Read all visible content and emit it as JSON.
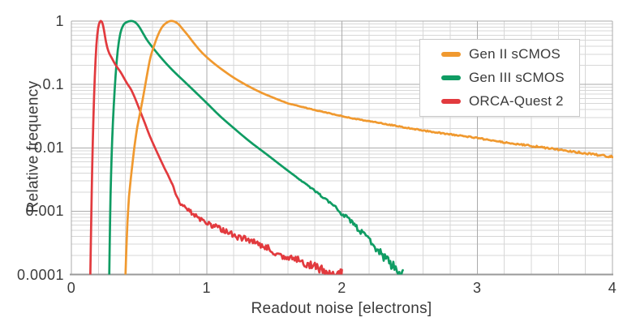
{
  "chart_data": {
    "type": "line",
    "title": "",
    "xlabel": "Readout noise [electrons]",
    "ylabel": "Relative frequency",
    "x_axis": {
      "min": 0,
      "max": 4,
      "major_step": 1,
      "minor_step": 0.2,
      "tick_labels": [
        "0",
        "1",
        "2",
        "3",
        "4"
      ]
    },
    "y_axis": {
      "scale": "log",
      "min": 0.0001,
      "max": 1,
      "tick_labels": [
        "1",
        "0.1",
        "0.01",
        "0.001",
        "0.0001"
      ]
    },
    "grid": {
      "major": true,
      "minor": true,
      "legend_position": "upper right"
    },
    "series": [
      {
        "name": "Gen II sCMOS",
        "color": "#F0992F",
        "noise": {
          "start_below": 0.08,
          "amp_per_decade": 0.015
        },
        "points": [
          [
            0.4,
            0.0001
          ],
          [
            0.41,
            0.0004
          ],
          [
            0.42,
            0.0011
          ],
          [
            0.432,
            0.0022
          ],
          [
            0.445,
            0.0042
          ],
          [
            0.458,
            0.0075
          ],
          [
            0.472,
            0.013
          ],
          [
            0.487,
            0.021
          ],
          [
            0.505,
            0.033
          ],
          [
            0.525,
            0.055
          ],
          [
            0.545,
            0.095
          ],
          [
            0.565,
            0.165
          ],
          [
            0.585,
            0.27
          ],
          [
            0.61,
            0.4
          ],
          [
            0.64,
            0.6
          ],
          [
            0.67,
            0.8
          ],
          [
            0.7,
            0.93
          ],
          [
            0.73,
            1.0
          ],
          [
            0.76,
            0.985
          ],
          [
            0.79,
            0.9
          ],
          [
            0.82,
            0.76
          ],
          [
            0.86,
            0.6
          ],
          [
            0.9,
            0.465
          ],
          [
            0.95,
            0.345
          ],
          [
            1.0,
            0.27
          ],
          [
            1.06,
            0.21
          ],
          [
            1.12,
            0.168
          ],
          [
            1.2,
            0.128
          ],
          [
            1.3,
            0.096
          ],
          [
            1.4,
            0.075
          ],
          [
            1.5,
            0.061
          ],
          [
            1.6,
            0.0505
          ],
          [
            1.7,
            0.0445
          ],
          [
            1.8,
            0.0395
          ],
          [
            1.95,
            0.0335
          ],
          [
            2.1,
            0.0285
          ],
          [
            2.3,
            0.0242
          ],
          [
            2.55,
            0.0195
          ],
          [
            2.8,
            0.0163
          ],
          [
            3.0,
            0.0142
          ],
          [
            3.2,
            0.0122
          ],
          [
            3.4,
            0.0107
          ],
          [
            3.6,
            0.0094
          ],
          [
            3.8,
            0.0082
          ],
          [
            4.0,
            0.0072
          ]
        ]
      },
      {
        "name": "Gen III sCMOS",
        "color": "#0F9C63",
        "noise": {
          "start_below": 0.004,
          "amp_per_decade": 0.05
        },
        "points": [
          [
            0.28,
            0.0001
          ],
          [
            0.286,
            0.0007
          ],
          [
            0.293,
            0.0035
          ],
          [
            0.302,
            0.014
          ],
          [
            0.313,
            0.045
          ],
          [
            0.327,
            0.14
          ],
          [
            0.343,
            0.35
          ],
          [
            0.362,
            0.64
          ],
          [
            0.385,
            0.87
          ],
          [
            0.41,
            0.965
          ],
          [
            0.435,
            1.0
          ],
          [
            0.455,
            0.995
          ],
          [
            0.475,
            0.945
          ],
          [
            0.5,
            0.82
          ],
          [
            0.53,
            0.64
          ],
          [
            0.56,
            0.5
          ],
          [
            0.6,
            0.385
          ],
          [
            0.65,
            0.285
          ],
          [
            0.7,
            0.215
          ],
          [
            0.76,
            0.158
          ],
          [
            0.83,
            0.114
          ],
          [
            0.9,
            0.082
          ],
          [
            1.0,
            0.051
          ],
          [
            1.1,
            0.0315
          ],
          [
            1.2,
            0.0205
          ],
          [
            1.32,
            0.0125
          ],
          [
            1.45,
            0.0077
          ],
          [
            1.58,
            0.0047
          ],
          [
            1.72,
            0.0028
          ],
          [
            1.86,
            0.00165
          ],
          [
            2.0,
            0.00092
          ],
          [
            2.1,
            0.00058
          ],
          [
            2.2,
            0.00035
          ],
          [
            2.3,
            0.0002
          ],
          [
            2.38,
            0.000135
          ],
          [
            2.45,
            0.0001
          ]
        ]
      },
      {
        "name": "ORCA-Quest 2",
        "color": "#E23A3E",
        "noise": {
          "start_below": 0.005,
          "amp_per_decade": 0.045
        },
        "points": [
          [
            0.14,
            0.0001
          ],
          [
            0.147,
            0.0008
          ],
          [
            0.154,
            0.005
          ],
          [
            0.163,
            0.03
          ],
          [
            0.173,
            0.13
          ],
          [
            0.185,
            0.42
          ],
          [
            0.198,
            0.78
          ],
          [
            0.21,
            0.965
          ],
          [
            0.22,
            1.0
          ],
          [
            0.23,
            0.92
          ],
          [
            0.24,
            0.74
          ],
          [
            0.252,
            0.52
          ],
          [
            0.265,
            0.385
          ],
          [
            0.28,
            0.31
          ],
          [
            0.3,
            0.258
          ],
          [
            0.32,
            0.215
          ],
          [
            0.34,
            0.185
          ],
          [
            0.365,
            0.155
          ],
          [
            0.39,
            0.125
          ],
          [
            0.415,
            0.101
          ],
          [
            0.44,
            0.084
          ],
          [
            0.47,
            0.061
          ],
          [
            0.5,
            0.042
          ],
          [
            0.54,
            0.0255
          ],
          [
            0.58,
            0.0153
          ],
          [
            0.63,
            0.0088
          ],
          [
            0.68,
            0.0052
          ],
          [
            0.74,
            0.0028
          ],
          [
            0.8,
            0.0014
          ],
          [
            0.86,
            0.00106
          ],
          [
            0.92,
            0.00085
          ],
          [
            1.0,
            0.00064
          ],
          [
            1.06,
            0.00058
          ],
          [
            1.13,
            0.0005
          ],
          [
            1.2,
            0.00042
          ],
          [
            1.3,
            0.00035
          ],
          [
            1.4,
            0.00029
          ],
          [
            1.5,
            0.00023
          ],
          [
            1.6,
            0.000185
          ],
          [
            1.7,
            0.00016
          ],
          [
            1.8,
            0.000135
          ],
          [
            1.9,
            0.000112
          ],
          [
            2.0,
            0.0001
          ]
        ]
      }
    ]
  },
  "colors": {
    "background": "#ffffff",
    "grid_minor": "#d7d7d7",
    "grid_major": "#ababab",
    "axis_line": "#9a9a9a",
    "text": "#3b3b3b",
    "legend_border": "#c9c9c9"
  }
}
